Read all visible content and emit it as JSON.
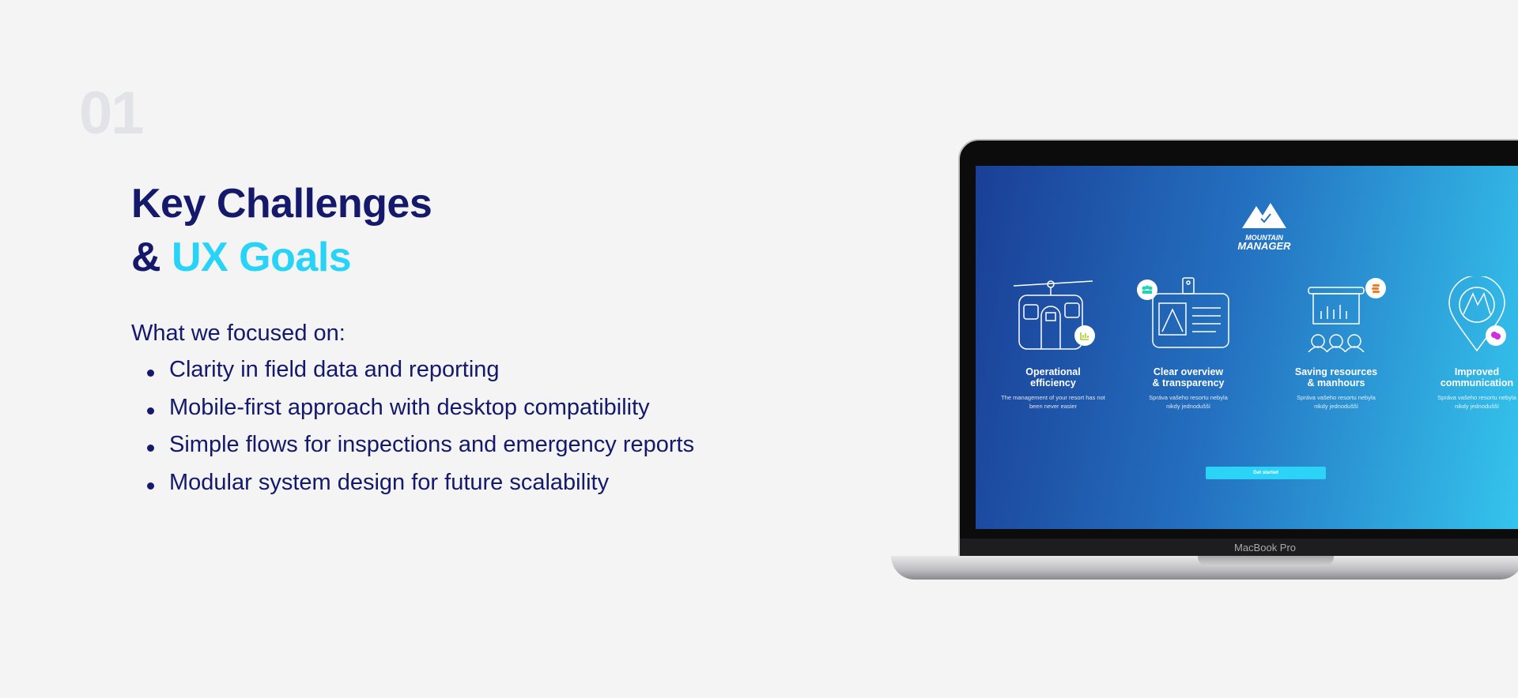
{
  "section_number": "01",
  "heading": {
    "line1": "Key Challenges",
    "line2_prefix": "& ",
    "line2_accent": "UX Goals"
  },
  "intro": "What we focused on:",
  "bullets": [
    "Clarity in field data and reporting",
    "Mobile-first approach with desktop compatibility",
    "Simple flows for inspections and emergency reports",
    "Modular system design for future scalability"
  ],
  "colors": {
    "navy": "#14196b",
    "accent": "#27d4f8",
    "number": "#e2e3e8"
  },
  "laptop": {
    "label": "MacBook Pro",
    "logo": {
      "line1": "MOUNTAIN",
      "line2": "MANAGER"
    },
    "features": [
      {
        "title1": "Operational",
        "title2": "efficiency",
        "desc1": "The management of your resort has not",
        "desc2": "been never easier",
        "icon": "cable-car-icon",
        "badge": "bar-chart-icon",
        "badge_color": "#a8d02a"
      },
      {
        "title1": "Clear overview",
        "title2": "& transparency",
        "desc1": "Správa vašeho resortu nebyla",
        "desc2": "nikdy jednodušší",
        "icon": "id-card-icon",
        "badge": "users-icon",
        "badge_color": "#1fd6b0"
      },
      {
        "title1": "Saving resources",
        "title2": "& manhours",
        "desc1": "Správa vašeho resortu nebyla",
        "desc2": "nikdy jednodušší",
        "icon": "presentation-icon",
        "badge": "coins-icon",
        "badge_color": "#f47c20"
      },
      {
        "title1": "Improved",
        "title2": "communication",
        "desc1": "Správa vašeho resortu nebyla",
        "desc2": "nikdy jednodušší",
        "icon": "map-pin-icon",
        "badge": "chat-icon",
        "badge_color": "#d12de0"
      }
    ],
    "cta": "Get started"
  }
}
